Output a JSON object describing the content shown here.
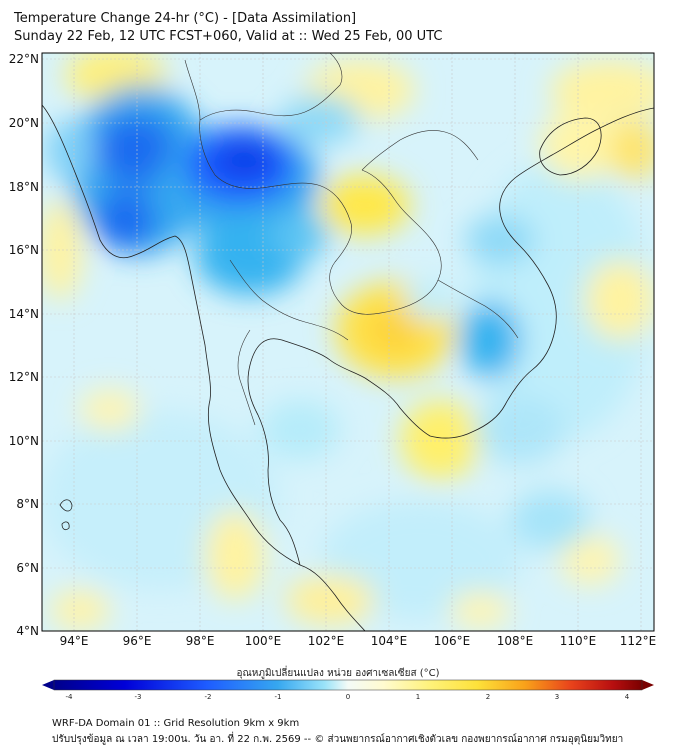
{
  "header": {
    "title_line1": "Temperature Change 24-hr (°C) - [Data Assimilation]",
    "title_line2": "Sunday 22 Feb, 12 UTC FCST+060, Valid at :: Wed 25 Feb, 00 UTC"
  },
  "map": {
    "lat_labels": [
      "22°N",
      "20°N",
      "18°N",
      "16°N",
      "14°N",
      "12°N",
      "10°N",
      "8°N",
      "6°N",
      "4°N"
    ],
    "lon_labels": [
      "94°E",
      "96°E",
      "98°E",
      "100°E",
      "102°E",
      "104°E",
      "106°E",
      "108°E",
      "110°E",
      "112°E"
    ],
    "lat_range": [
      4,
      22
    ],
    "lon_range": [
      93,
      112.3
    ]
  },
  "colorbar": {
    "title": "อุณหภูมิเปลี่ยนแปลง หน่วย องศาเซลเซียส (°C)",
    "tick_labels": [
      "-4",
      "-3",
      "-2",
      "-1",
      "0",
      "1",
      "2",
      "3",
      "4"
    ],
    "range": [
      -4,
      4
    ],
    "colors": [
      "#00008b",
      "#0000d8",
      "#1e5cff",
      "#36a7f0",
      "#7fd7f7",
      "#e0f7fb",
      "#fffbd6",
      "#fff27a",
      "#fde13a",
      "#f9a21a",
      "#e8421b",
      "#b80f10",
      "#7a0000"
    ]
  },
  "footer": {
    "line1": "WRF-DA Domain 01 :: Grid Resolution 9km x 9km",
    "line2": "ปรับปรุงข้อมูล ณ เวลา 19:00น. วัน อา. ที่ 22 ก.พ. 2569 -- © ส่วนพยากรณ์อากาศเชิงตัวเลข กองพยากรณ์อากาศ กรมอุตุนิยมวิทยา"
  }
}
